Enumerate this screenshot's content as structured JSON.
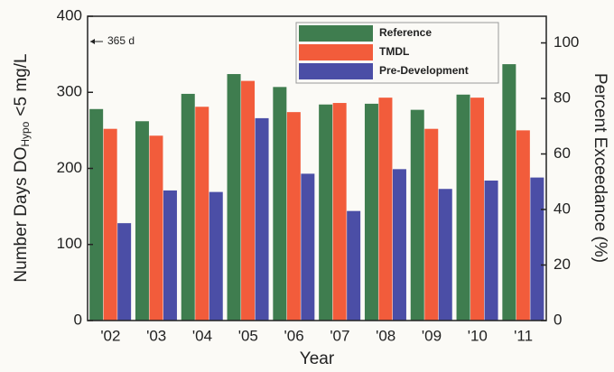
{
  "chart_data": {
    "type": "bar",
    "x_label": "Year",
    "y_label": [
      "Number Days DO",
      "Hypo",
      "<5 mg/L"
    ],
    "y2_label": "Percent Exceedance (%)",
    "annotation": "365 d",
    "categories": [
      "'02",
      "'03",
      "'04",
      "'05",
      "'06",
      "'07",
      "'08",
      "'09",
      "'10",
      "'11"
    ],
    "series": [
      {
        "name": "Reference",
        "color": "#3f7d4f",
        "values": [
          278,
          262,
          298,
          324,
          307,
          284,
          285,
          277,
          297,
          337
        ]
      },
      {
        "name": "TMDL",
        "color": "#f25c3b",
        "values": [
          252,
          243,
          281,
          315,
          274,
          286,
          293,
          252,
          293,
          250
        ]
      },
      {
        "name": "Pre-Development",
        "color": "#4b4ea6",
        "values": [
          128,
          171,
          169,
          266,
          193,
          144,
          199,
          173,
          184,
          188
        ]
      }
    ],
    "ylim": [
      0,
      400
    ],
    "yticks": [
      0,
      100,
      200,
      300,
      400
    ],
    "y2lim": [
      0,
      109.6
    ],
    "y2ticks": [
      0,
      20,
      40,
      60,
      80,
      100
    ]
  }
}
